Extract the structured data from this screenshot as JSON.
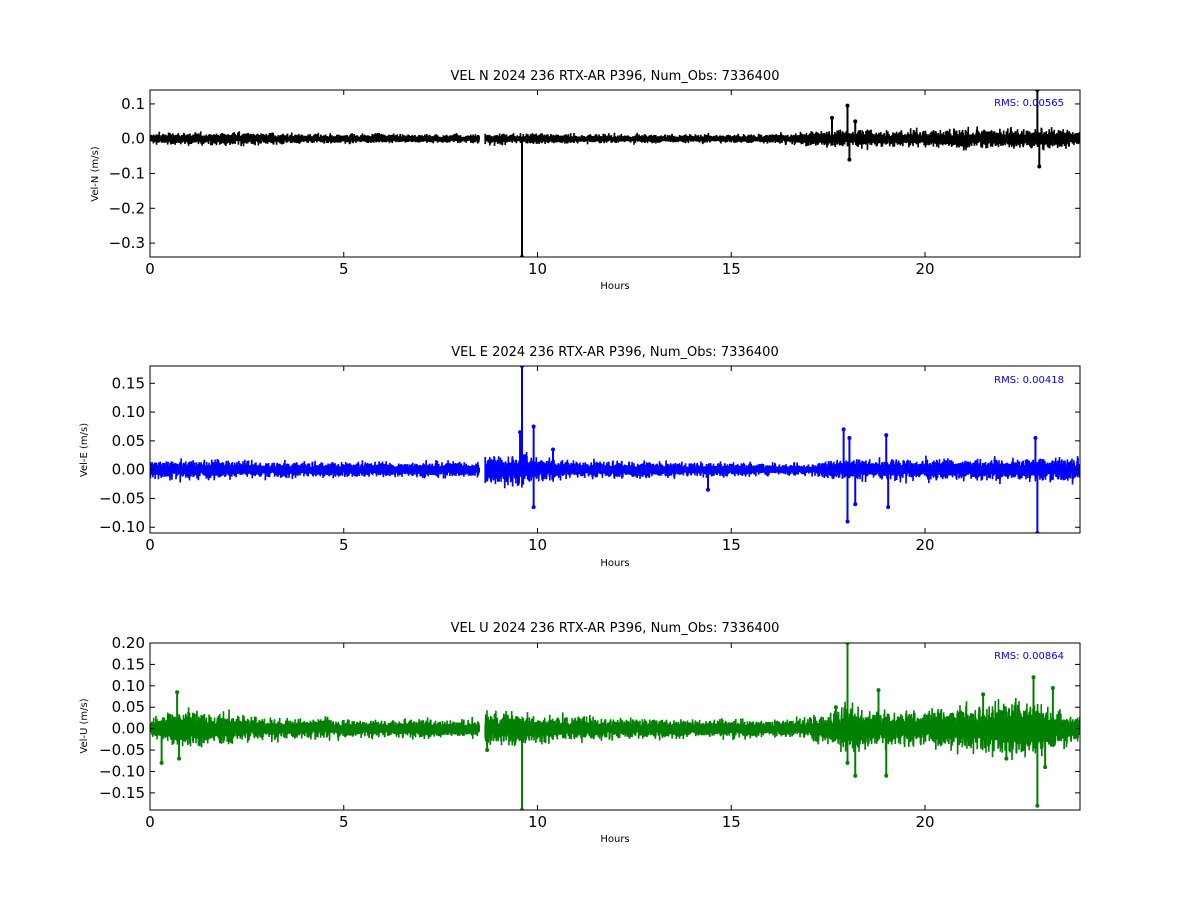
{
  "chart_data": [
    {
      "type": "line",
      "title": "VEL N 2024 236 RTX-AR  P396, Num_Obs: 7336400",
      "xlabel": "Hours",
      "ylabel": "Vel-N (m/s)",
      "xlim": [
        0,
        24
      ],
      "ylim": [
        -0.34,
        0.14
      ],
      "xticks": [
        0,
        5,
        10,
        15,
        20
      ],
      "xtick_labels": [
        "0",
        "5",
        "10",
        "15",
        "20"
      ],
      "yticks": [
        0.1,
        0.0,
        -0.1,
        -0.2,
        -0.3
      ],
      "ytick_labels": [
        "0.1",
        "0.0",
        "−0.1",
        "−0.2",
        "−0.3"
      ],
      "grid": false,
      "color": "#000000",
      "rms_label": "RMS:  0.00565",
      "data_gap": [
        8.5,
        8.65
      ],
      "noise_envelope": [
        {
          "x": 0,
          "amp": 0.012
        },
        {
          "x": 2.5,
          "amp": 0.014
        },
        {
          "x": 4,
          "amp": 0.011
        },
        {
          "x": 8.5,
          "amp": 0.01
        },
        {
          "x": 8.65,
          "amp": 0.012
        },
        {
          "x": 12,
          "amp": 0.01
        },
        {
          "x": 16,
          "amp": 0.01
        },
        {
          "x": 17,
          "amp": 0.016
        },
        {
          "x": 18,
          "amp": 0.02
        },
        {
          "x": 19,
          "amp": 0.016
        },
        {
          "x": 20,
          "amp": 0.018
        },
        {
          "x": 21.5,
          "amp": 0.022
        },
        {
          "x": 23,
          "amp": 0.024
        },
        {
          "x": 24,
          "amp": 0.015
        }
      ],
      "spikes": [
        {
          "x": 9.6,
          "y": -0.34
        },
        {
          "x": 17.6,
          "y": 0.06
        },
        {
          "x": 18.0,
          "y": 0.095
        },
        {
          "x": 18.05,
          "y": -0.06
        },
        {
          "x": 18.2,
          "y": 0.05
        },
        {
          "x": 22.9,
          "y": 0.14
        },
        {
          "x": 22.95,
          "y": -0.08
        }
      ]
    },
    {
      "type": "line",
      "title": "VEL E 2024 236 RTX-AR  P396, Num_Obs: 7336400",
      "xlabel": "Hours",
      "ylabel": "Vel-E (m/s)",
      "xlim": [
        0,
        24
      ],
      "ylim": [
        -0.11,
        0.18
      ],
      "xticks": [
        0,
        5,
        10,
        15,
        20
      ],
      "xtick_labels": [
        "0",
        "5",
        "10",
        "15",
        "20"
      ],
      "yticks": [
        0.15,
        0.1,
        0.05,
        0.0,
        -0.05,
        -0.1
      ],
      "ytick_labels": [
        "0.15",
        "0.10",
        "0.05",
        "0.00",
        "−0.05",
        "−0.10"
      ],
      "grid": false,
      "color": "#0000ff",
      "rms_label": "RMS:  0.00418",
      "data_gap": [
        8.5,
        8.65
      ],
      "noise_envelope": [
        {
          "x": 0,
          "amp": 0.014
        },
        {
          "x": 2,
          "amp": 0.012
        },
        {
          "x": 4,
          "amp": 0.01
        },
        {
          "x": 8.5,
          "amp": 0.01
        },
        {
          "x": 8.65,
          "amp": 0.02
        },
        {
          "x": 9.6,
          "amp": 0.022
        },
        {
          "x": 10.5,
          "amp": 0.012
        },
        {
          "x": 14,
          "amp": 0.01
        },
        {
          "x": 17,
          "amp": 0.008
        },
        {
          "x": 18,
          "amp": 0.014
        },
        {
          "x": 20,
          "amp": 0.014
        },
        {
          "x": 24,
          "amp": 0.016
        }
      ],
      "spikes": [
        {
          "x": 9.55,
          "y": 0.065
        },
        {
          "x": 9.6,
          "y": 0.18
        },
        {
          "x": 9.9,
          "y": 0.075
        },
        {
          "x": 9.9,
          "y": -0.065
        },
        {
          "x": 10.4,
          "y": 0.035
        },
        {
          "x": 14.4,
          "y": -0.035
        },
        {
          "x": 17.9,
          "y": 0.07
        },
        {
          "x": 18.0,
          "y": -0.09
        },
        {
          "x": 18.05,
          "y": 0.055
        },
        {
          "x": 18.2,
          "y": -0.06
        },
        {
          "x": 19.0,
          "y": 0.06
        },
        {
          "x": 19.05,
          "y": -0.065
        },
        {
          "x": 22.85,
          "y": 0.055
        },
        {
          "x": 22.9,
          "y": -0.11
        }
      ]
    },
    {
      "type": "line",
      "title": "VEL U 2024 236 RTX-AR  P396, Num_Obs: 7336400",
      "xlabel": "Hours",
      "ylabel": "Vel-U (m/s)",
      "xlim": [
        0,
        24
      ],
      "ylim": [
        -0.19,
        0.2
      ],
      "xticks": [
        0,
        5,
        10,
        15,
        20
      ],
      "xtick_labels": [
        "0",
        "5",
        "10",
        "15",
        "20"
      ],
      "yticks": [
        0.2,
        0.15,
        0.1,
        0.05,
        0.0,
        -0.05,
        -0.1,
        -0.15
      ],
      "ytick_labels": [
        "0.20",
        "0.15",
        "0.10",
        "0.05",
        "0.00",
        "−0.05",
        "−0.10",
        "−0.15"
      ],
      "grid": false,
      "color": "#008000",
      "rms_label": "RMS:  0.00864",
      "data_gap": [
        8.5,
        8.65
      ],
      "noise_envelope": [
        {
          "x": 0,
          "amp": 0.02
        },
        {
          "x": 1,
          "amp": 0.035
        },
        {
          "x": 2,
          "amp": 0.025
        },
        {
          "x": 3,
          "amp": 0.018
        },
        {
          "x": 8.5,
          "amp": 0.016
        },
        {
          "x": 8.65,
          "amp": 0.03
        },
        {
          "x": 10,
          "amp": 0.025
        },
        {
          "x": 12,
          "amp": 0.018
        },
        {
          "x": 16,
          "amp": 0.015
        },
        {
          "x": 17,
          "amp": 0.02
        },
        {
          "x": 18,
          "amp": 0.04
        },
        {
          "x": 19,
          "amp": 0.03
        },
        {
          "x": 20,
          "amp": 0.03
        },
        {
          "x": 21.5,
          "amp": 0.045
        },
        {
          "x": 22.5,
          "amp": 0.05
        },
        {
          "x": 24,
          "amp": 0.025
        }
      ],
      "spikes": [
        {
          "x": 0.7,
          "y": 0.085
        },
        {
          "x": 0.75,
          "y": -0.07
        },
        {
          "x": 0.3,
          "y": -0.08
        },
        {
          "x": 8.7,
          "y": -0.05
        },
        {
          "x": 9.6,
          "y": -0.19
        },
        {
          "x": 17.7,
          "y": 0.05
        },
        {
          "x": 18.0,
          "y": 0.2
        },
        {
          "x": 18.0,
          "y": -0.08
        },
        {
          "x": 18.2,
          "y": -0.11
        },
        {
          "x": 18.8,
          "y": 0.09
        },
        {
          "x": 19.0,
          "y": -0.11
        },
        {
          "x": 21.5,
          "y": 0.08
        },
        {
          "x": 22.1,
          "y": -0.07
        },
        {
          "x": 22.8,
          "y": 0.12
        },
        {
          "x": 22.9,
          "y": -0.18
        },
        {
          "x": 23.3,
          "y": 0.095
        },
        {
          "x": 23.1,
          "y": -0.09
        }
      ]
    }
  ]
}
